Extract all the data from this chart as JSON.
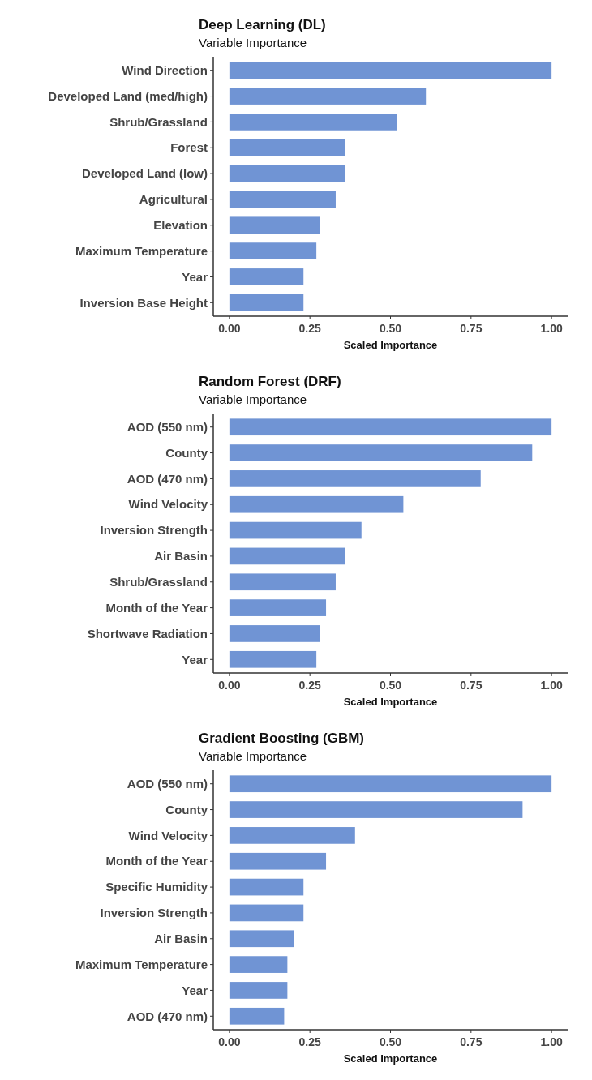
{
  "chart_data": [
    {
      "type": "bar",
      "orientation": "horizontal",
      "title": "Deep Learning (DL)",
      "subtitle": "Variable Importance",
      "xlabel": "Scaled Importance",
      "color": "#7094d4",
      "grid": false,
      "categories": [
        "Wind Direction",
        "Developed Land (med/high)",
        "Shrub/Grassland",
        "Forest",
        "Developed Land (low)",
        "Agricultural",
        "Elevation",
        "Maximum Temperature",
        "Year",
        "Inversion Base Height"
      ],
      "values": [
        1.0,
        0.61,
        0.52,
        0.36,
        0.36,
        0.33,
        0.28,
        0.27,
        0.23,
        0.23
      ],
      "xlim": [
        -0.05,
        1.05
      ],
      "xticks": [
        {
          "value": 0,
          "label": "0.00"
        },
        {
          "value": 0.25,
          "label": "0.25"
        },
        {
          "value": 0.5,
          "label": "0.50"
        },
        {
          "value": 0.75,
          "label": "0.75"
        },
        {
          "value": 1,
          "label": "1.00"
        }
      ]
    },
    {
      "type": "bar",
      "orientation": "horizontal",
      "title": "Random Forest (DRF)",
      "subtitle": "Variable Importance",
      "xlabel": "Scaled Importance",
      "color": "#7094d4",
      "grid": false,
      "categories": [
        "AOD (550 nm)",
        "County",
        "AOD (470 nm)",
        "Wind Velocity",
        "Inversion Strength",
        "Air Basin",
        "Shrub/Grassland",
        "Month of the Year",
        "Shortwave Radiation",
        "Year"
      ],
      "values": [
        1.0,
        0.94,
        0.78,
        0.54,
        0.41,
        0.36,
        0.33,
        0.3,
        0.28,
        0.27
      ],
      "xlim": [
        -0.05,
        1.05
      ],
      "xticks": [
        {
          "value": 0,
          "label": "0.00"
        },
        {
          "value": 0.25,
          "label": "0.25"
        },
        {
          "value": 0.5,
          "label": "0.50"
        },
        {
          "value": 0.75,
          "label": "0.75"
        },
        {
          "value": 1,
          "label": "1.00"
        }
      ]
    },
    {
      "type": "bar",
      "orientation": "horizontal",
      "title": "Gradient Boosting (GBM)",
      "subtitle": "Variable Importance",
      "xlabel": "Scaled Importance",
      "color": "#7094d4",
      "grid": false,
      "categories": [
        "AOD (550 nm)",
        "County",
        "Wind Velocity",
        "Month of the Year",
        "Specific Humidity",
        "Inversion Strength",
        "Air Basin",
        "Maximum Temperature",
        "Year",
        "AOD (470 nm)"
      ],
      "values": [
        1.0,
        0.91,
        0.39,
        0.3,
        0.23,
        0.23,
        0.2,
        0.18,
        0.18,
        0.17
      ],
      "xlim": [
        -0.05,
        1.05
      ],
      "xticks": [
        {
          "value": 0,
          "label": "0.00"
        },
        {
          "value": 0.25,
          "label": "0.25"
        },
        {
          "value": 0.5,
          "label": "0.50"
        },
        {
          "value": 0.75,
          "label": "0.75"
        },
        {
          "value": 1,
          "label": "1.00"
        }
      ]
    }
  ]
}
